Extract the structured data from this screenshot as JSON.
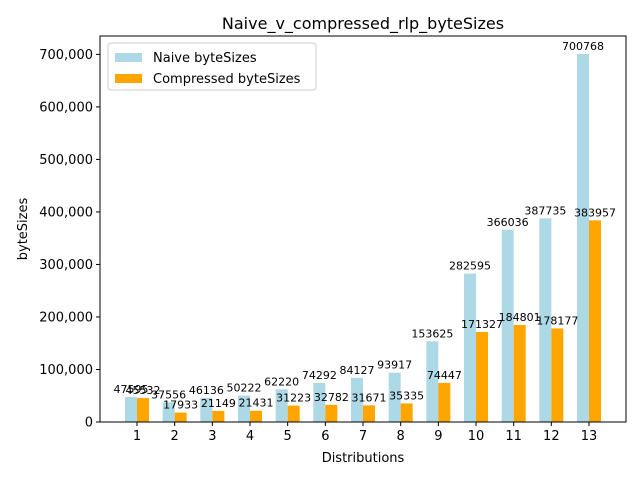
{
  "chart_data": {
    "type": "bar",
    "title": "Naive_v_compressed_rlp_byteSizes",
    "xlabel": "Distributions",
    "ylabel": "byteSizes",
    "categories": [
      "1",
      "2",
      "3",
      "4",
      "5",
      "6",
      "7",
      "8",
      "9",
      "10",
      "11",
      "12",
      "13"
    ],
    "series": [
      {
        "name": "Naive byteSizes",
        "color": "#add8e6",
        "values": [
          47595,
          37556,
          46136,
          50222,
          62220,
          74292,
          84127,
          93917,
          153625,
          282595,
          366036,
          387735,
          700768
        ]
      },
      {
        "name": "Compressed byteSizes",
        "color": "#ffa500",
        "values": [
          45532,
          17933,
          21149,
          21431,
          31223,
          32782,
          31671,
          35335,
          74447,
          171327,
          184801,
          178177,
          383957
        ]
      }
    ],
    "ylim": [
      0,
      735000
    ],
    "yticks": [
      0,
      100000,
      200000,
      300000,
      400000,
      500000,
      600000,
      700000
    ],
    "ytick_labels": [
      "0",
      "100,000",
      "200,000",
      "300,000",
      "400,000",
      "500,000",
      "600,000",
      "700,000"
    ],
    "legend": "top-left",
    "grid": false
  }
}
